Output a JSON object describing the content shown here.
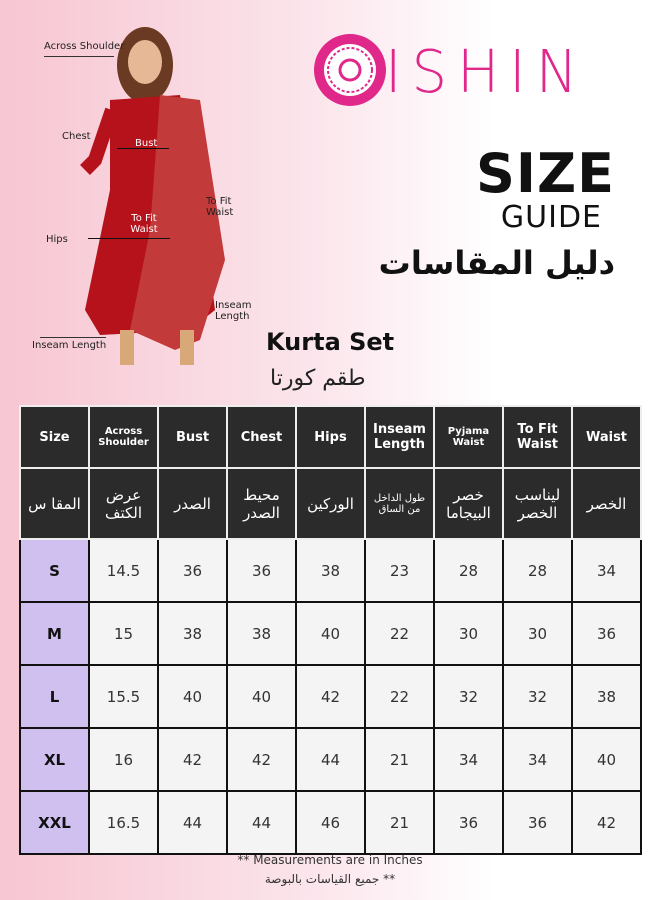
{
  "brand": {
    "name": "ISHIN",
    "color": "#e0278a"
  },
  "title": {
    "size": "SIZE",
    "guide": "GUIDE",
    "arabic": "دليل المقاسات"
  },
  "product": {
    "name": "Kurta Set",
    "arabic": "طقم كورتا"
  },
  "figure_labels": {
    "across_shoulder": "Across Shoulder",
    "chest": "Chest",
    "bust": "Bust",
    "to_fit_waist_right": "To Fit Waist",
    "to_fit_waist_center": "To Fit Waist",
    "hips": "Hips",
    "inseam_length_right": "Inseam Length",
    "inseam_length_bottom": "Inseam Length"
  },
  "table": {
    "headers": [
      "Size",
      "Across Shoulder",
      "Bust",
      "Chest",
      "Hips",
      "Inseam Length",
      "Pyjama Waist",
      "To Fit Waist",
      "Waist"
    ],
    "headers_ar": [
      "المقا س",
      "عرض الكتف",
      "الصدر",
      "محيط الصدر",
      "الوركين",
      "طول الداخل من الساق",
      "خصر البيجاما",
      "ليناسب الخصر",
      "الخصر"
    ],
    "rows": [
      [
        "S",
        "14.5",
        "36",
        "36",
        "38",
        "23",
        "28",
        "28",
        "34"
      ],
      [
        "M",
        "15",
        "38",
        "38",
        "40",
        "22",
        "30",
        "30",
        "36"
      ],
      [
        "L",
        "15.5",
        "40",
        "40",
        "42",
        "22",
        "32",
        "32",
        "38"
      ],
      [
        "XL",
        "16",
        "42",
        "42",
        "44",
        "21",
        "34",
        "34",
        "40"
      ],
      [
        "XXL",
        "16.5",
        "44",
        "44",
        "46",
        "21",
        "36",
        "36",
        "42"
      ]
    ],
    "size_cell_color": "#cfc0ef",
    "header_color": "#2b2b2b"
  },
  "footer": {
    "note": "** Measurements are in Inches",
    "note_ar": "** جميع القياسات بالبوصة"
  }
}
